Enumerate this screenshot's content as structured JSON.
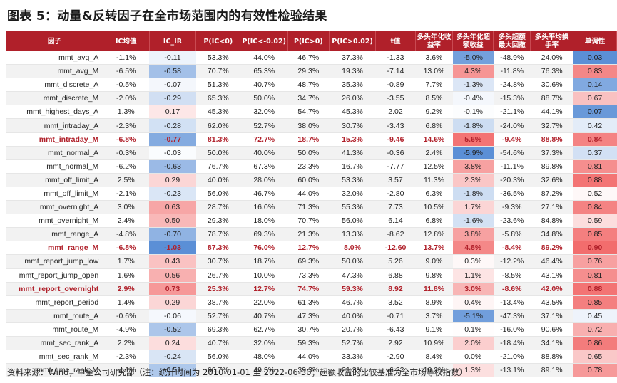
{
  "title": "图表 5：动量&反转因子在全市场范围内的有效性检验结果",
  "footer": "资料来源：Wind，中金公司研究部（注：统计时间为 2010-01-01 至 2022-06-30；超额收益的比较基准为全市场等权指数）",
  "watermark": "CICC 中金公司",
  "headers": [
    "因子",
    "IC均值",
    "IC_IR",
    "P(IC<0)",
    "P(IC<-0.02)",
    "P(IC>0)",
    "P(IC>0.02)",
    "t值",
    "多头年化收益率",
    "多头年化超额收益",
    "多头超额最大回撤",
    "多头平均换手率",
    "单调性"
  ],
  "rows": [
    [
      "mmt_avg_A",
      "-1.1%",
      "-0.11",
      "53.3%",
      "44.0%",
      "46.7%",
      "37.3%",
      "-1.33",
      "3.6%",
      "-5.0%",
      "-48.9%",
      "24.0%",
      "0.03"
    ],
    [
      "mmt_avg_M",
      "-6.5%",
      "-0.58",
      "70.7%",
      "65.3%",
      "29.3%",
      "19.3%",
      "-7.14",
      "13.0%",
      "4.3%",
      "-11.8%",
      "76.3%",
      "0.83"
    ],
    [
      "mmt_discrete_A",
      "-0.5%",
      "-0.07",
      "51.3%",
      "40.7%",
      "48.7%",
      "35.3%",
      "-0.89",
      "7.7%",
      "-1.3%",
      "-24.8%",
      "30.6%",
      "0.14"
    ],
    [
      "mmt_discrete_M",
      "-2.0%",
      "-0.29",
      "65.3%",
      "50.0%",
      "34.7%",
      "26.0%",
      "-3.55",
      "8.5%",
      "-0.4%",
      "-15.3%",
      "88.7%",
      "0.67"
    ],
    [
      "mmt_highest_days_A",
      "1.3%",
      "0.17",
      "45.3%",
      "32.0%",
      "54.7%",
      "45.3%",
      "2.02",
      "9.2%",
      "-0.1%",
      "-21.1%",
      "44.1%",
      "0.07"
    ],
    [
      "mmt_intraday_A",
      "-2.3%",
      "-0.28",
      "62.0%",
      "52.7%",
      "38.0%",
      "30.7%",
      "-3.43",
      "6.8%",
      "-1.8%",
      "-24.0%",
      "32.7%",
      "0.42"
    ],
    [
      "mmt_intraday_M",
      "-6.8%",
      "-0.77",
      "81.3%",
      "72.7%",
      "18.7%",
      "15.3%",
      "-9.46",
      "14.6%",
      "5.6%",
      "-9.4%",
      "88.8%",
      "0.84"
    ],
    [
      "mmt_normal_A",
      "-0.3%",
      "-0.03",
      "50.0%",
      "40.0%",
      "50.0%",
      "41.3%",
      "-0.36",
      "2.4%",
      "-5.9%",
      "-54.6%",
      "37.3%",
      "0.37"
    ],
    [
      "mmt_normal_M",
      "-6.2%",
      "-0.63",
      "76.7%",
      "67.3%",
      "23.3%",
      "16.7%",
      "-7.77",
      "12.5%",
      "3.8%",
      "-11.1%",
      "89.8%",
      "0.81"
    ],
    [
      "mmt_off_limit_A",
      "2.5%",
      "0.29",
      "40.0%",
      "28.0%",
      "60.0%",
      "53.3%",
      "3.57",
      "11.3%",
      "2.3%",
      "-20.3%",
      "32.6%",
      "0.88"
    ],
    [
      "mmt_off_limit_M",
      "-2.1%",
      "-0.23",
      "56.0%",
      "46.7%",
      "44.0%",
      "32.0%",
      "-2.80",
      "6.3%",
      "-1.8%",
      "-36.5%",
      "87.2%",
      "0.52"
    ],
    [
      "mmt_overnight_A",
      "3.0%",
      "0.63",
      "28.7%",
      "16.0%",
      "71.3%",
      "55.3%",
      "7.73",
      "10.5%",
      "1.7%",
      "-9.3%",
      "27.1%",
      "0.84"
    ],
    [
      "mmt_overnight_M",
      "2.4%",
      "0.50",
      "29.3%",
      "18.0%",
      "70.7%",
      "56.0%",
      "6.14",
      "6.8%",
      "-1.6%",
      "-23.6%",
      "84.8%",
      "0.59"
    ],
    [
      "mmt_range_A",
      "-4.8%",
      "-0.70",
      "78.7%",
      "69.3%",
      "21.3%",
      "13.3%",
      "-8.62",
      "12.8%",
      "3.8%",
      "-5.8%",
      "34.8%",
      "0.85"
    ],
    [
      "mmt_range_M",
      "-6.8%",
      "-1.03",
      "87.3%",
      "76.0%",
      "12.7%",
      "8.0%",
      "-12.60",
      "13.7%",
      "4.8%",
      "-8.4%",
      "89.2%",
      "0.90"
    ],
    [
      "mmt_report_jump_low",
      "1.7%",
      "0.43",
      "30.7%",
      "18.7%",
      "69.3%",
      "50.0%",
      "5.26",
      "9.0%",
      "0.3%",
      "-12.2%",
      "46.4%",
      "0.76"
    ],
    [
      "mmt_report_jump_open",
      "1.6%",
      "0.56",
      "26.7%",
      "10.0%",
      "73.3%",
      "47.3%",
      "6.88",
      "9.8%",
      "1.1%",
      "-8.5%",
      "43.1%",
      "0.81"
    ],
    [
      "mmt_report_overnight",
      "2.9%",
      "0.73",
      "25.3%",
      "12.7%",
      "74.7%",
      "59.3%",
      "8.92",
      "11.8%",
      "3.0%",
      "-8.6%",
      "42.0%",
      "0.88"
    ],
    [
      "mmt_report_period",
      "1.4%",
      "0.29",
      "38.7%",
      "22.0%",
      "61.3%",
      "46.7%",
      "3.52",
      "8.9%",
      "0.4%",
      "-13.4%",
      "43.5%",
      "0.85"
    ],
    [
      "mmt_route_A",
      "-0.6%",
      "-0.06",
      "52.7%",
      "40.7%",
      "47.3%",
      "40.0%",
      "-0.71",
      "3.7%",
      "-5.1%",
      "-47.3%",
      "37.1%",
      "0.45"
    ],
    [
      "mmt_route_M",
      "-4.9%",
      "-0.52",
      "69.3%",
      "62.7%",
      "30.7%",
      "20.7%",
      "-6.43",
      "9.1%",
      "0.1%",
      "-16.0%",
      "90.6%",
      "0.72"
    ],
    [
      "mmt_sec_rank_A",
      "2.2%",
      "0.24",
      "40.7%",
      "32.0%",
      "59.3%",
      "52.7%",
      "2.92",
      "10.9%",
      "2.0%",
      "-18.4%",
      "34.1%",
      "0.86"
    ],
    [
      "mmt_sec_rank_M",
      "-2.3%",
      "-0.24",
      "56.0%",
      "48.0%",
      "44.0%",
      "33.3%",
      "-2.90",
      "8.4%",
      "0.0%",
      "-21.0%",
      "88.8%",
      "0.65"
    ],
    [
      "mmt_time_rank_M",
      "-4.1%",
      "-0.51",
      "60.7%",
      "49.3%",
      "39.3%",
      "21.3%",
      "-6.22",
      "10.2%",
      "1.3%",
      "-13.1%",
      "89.1%",
      "0.78"
    ]
  ],
  "highlight_rows": [
    6,
    14,
    17
  ],
  "colors": {
    "header_bg": "#b0202a",
    "highlight_text": "#b0202a",
    "positive": "#f26d6d",
    "negative": "#5b8fd6"
  }
}
